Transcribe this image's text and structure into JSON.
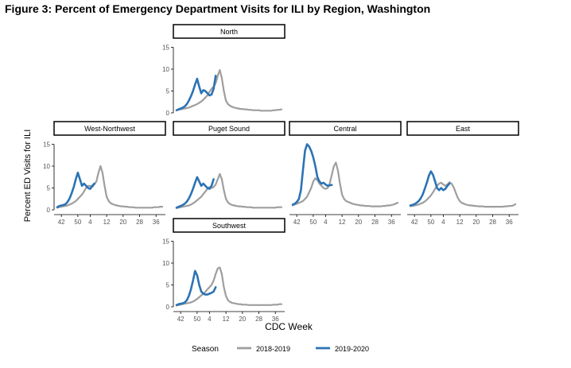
{
  "figure_title": "Figure 3: Percent of Emergency Department Visits for ILI by Region, Washington",
  "colors": {
    "season_2018_2019": "#9e9e9e",
    "season_2019_2020": "#2b73b5",
    "strip_fill": "#ffffff",
    "strip_border": "#000000"
  },
  "chart_data": {
    "type": "line",
    "title": "Figure 3: Percent of Emergency Department Visits for ILI by Region, Washington",
    "xlabel": "CDC Week",
    "ylabel": "Percent ED Visits for ILI",
    "ylim": [
      0,
      15
    ],
    "y_ticks": [
      0,
      5,
      10,
      15
    ],
    "x_ticks": [
      "42",
      "50",
      "4",
      "12",
      "20",
      "28",
      "36"
    ],
    "grid": false,
    "legend": {
      "title": "Season",
      "placement": "bottom",
      "entries": [
        "2018-2019",
        "2019-2020"
      ]
    },
    "x_weeks": [
      40,
      41,
      42,
      43,
      44,
      45,
      46,
      47,
      48,
      49,
      50,
      51,
      52,
      1,
      2,
      3,
      4,
      5,
      6,
      7,
      8,
      9,
      10,
      11,
      12,
      13,
      14,
      15,
      16,
      17,
      18,
      19,
      20,
      21,
      22,
      23,
      24,
      25,
      26,
      27,
      28,
      29,
      30,
      31,
      32,
      33,
      34,
      35,
      36,
      37,
      38,
      39
    ],
    "panels": [
      {
        "name": "North",
        "series": [
          {
            "name": "2018-2019",
            "values": [
              0.6,
              0.7,
              0.8,
              0.9,
              1.0,
              1.1,
              1.2,
              1.4,
              1.6,
              1.8,
              2.0,
              2.3,
              2.6,
              3.0,
              3.5,
              4.0,
              4.8,
              5.5,
              6.0,
              6.8,
              8.5,
              9.8,
              8.0,
              5.0,
              2.8,
              2.0,
              1.6,
              1.4,
              1.2,
              1.1,
              1.0,
              0.9,
              0.9,
              0.8,
              0.8,
              0.7,
              0.7,
              0.6,
              0.6,
              0.6,
              0.6,
              0.5,
              0.5,
              0.5,
              0.5,
              0.5,
              0.5,
              0.6,
              0.6,
              0.7,
              0.7,
              0.8
            ]
          },
          {
            "name": "2019-2020",
            "values": [
              0.6,
              0.8,
              1.0,
              1.2,
              1.5,
              2.0,
              2.8,
              3.8,
              5.0,
              6.5,
              7.8,
              6.0,
              4.5,
              5.2,
              5.0,
              4.5,
              4.0,
              4.2,
              5.5,
              8.5
            ]
          }
        ]
      },
      {
        "name": "West-Northwest",
        "series": [
          {
            "name": "2018-2019",
            "values": [
              0.5,
              0.6,
              0.7,
              0.8,
              0.9,
              1.0,
              1.2,
              1.4,
              1.7,
              2.0,
              2.5,
              3.0,
              3.5,
              4.2,
              5.0,
              5.5,
              5.5,
              5.2,
              5.8,
              6.5,
              8.5,
              10.0,
              8.5,
              5.5,
              3.0,
              2.0,
              1.5,
              1.3,
              1.1,
              1.0,
              0.9,
              0.8,
              0.8,
              0.7,
              0.7,
              0.6,
              0.6,
              0.6,
              0.5,
              0.5,
              0.5,
              0.5,
              0.5,
              0.5,
              0.5,
              0.5,
              0.5,
              0.6,
              0.6,
              0.6,
              0.7,
              0.7
            ]
          },
          {
            "name": "2019-2020",
            "values": [
              0.6,
              0.9,
              1.0,
              1.1,
              1.3,
              1.8,
              2.6,
              3.8,
              5.2,
              7.0,
              8.5,
              7.0,
              5.5,
              6.0,
              5.5,
              5.0,
              4.8,
              5.5,
              6.0
            ]
          }
        ]
      },
      {
        "name": "Puget Sound",
        "series": [
          {
            "name": "2018-2019",
            "values": [
              0.4,
              0.5,
              0.6,
              0.7,
              0.8,
              0.9,
              1.0,
              1.2,
              1.5,
              1.8,
              2.2,
              2.6,
              3.0,
              3.6,
              4.2,
              4.8,
              5.2,
              5.0,
              5.2,
              5.8,
              7.0,
              8.2,
              7.0,
              4.5,
              2.5,
              1.7,
              1.3,
              1.1,
              1.0,
              0.9,
              0.8,
              0.8,
              0.7,
              0.7,
              0.6,
              0.6,
              0.6,
              0.5,
              0.5,
              0.5,
              0.5,
              0.5,
              0.5,
              0.5,
              0.5,
              0.5,
              0.5,
              0.5,
              0.5,
              0.6,
              0.6,
              0.6
            ]
          },
          {
            "name": "2019-2020",
            "values": [
              0.5,
              0.7,
              0.9,
              1.1,
              1.4,
              1.9,
              2.6,
              3.6,
              4.8,
              6.2,
              7.5,
              6.5,
              5.5,
              6.0,
              5.5,
              5.0,
              4.8,
              5.5,
              7.0
            ]
          }
        ]
      },
      {
        "name": "Central",
        "series": [
          {
            "name": "2018-2019",
            "values": [
              1.0,
              1.2,
              1.4,
              1.6,
              1.8,
              2.0,
              2.5,
              3.0,
              4.0,
              5.0,
              6.5,
              7.2,
              6.8,
              6.0,
              5.5,
              5.0,
              4.8,
              5.0,
              6.0,
              8.0,
              10.0,
              10.8,
              9.0,
              6.0,
              3.5,
              2.5,
              2.0,
              1.8,
              1.6,
              1.4,
              1.3,
              1.2,
              1.1,
              1.0,
              1.0,
              0.9,
              0.9,
              0.9,
              0.8,
              0.8,
              0.8,
              0.8,
              0.8,
              0.8,
              0.9,
              0.9,
              1.0,
              1.0,
              1.1,
              1.2,
              1.4,
              1.6
            ]
          },
          {
            "name": "2019-2020",
            "values": [
              1.2,
              1.4,
              1.8,
              2.5,
              4.5,
              9.0,
              13.5,
              15.0,
              14.5,
              13.5,
              12.0,
              10.0,
              7.5,
              6.5,
              6.0,
              6.2,
              5.8,
              5.5,
              5.6,
              5.7
            ]
          }
        ]
      },
      {
        "name": "East",
        "series": [
          {
            "name": "2018-2019",
            "values": [
              0.8,
              0.9,
              1.0,
              1.1,
              1.2,
              1.4,
              1.6,
              1.9,
              2.3,
              2.8,
              3.3,
              4.0,
              4.8,
              5.5,
              6.0,
              6.2,
              5.8,
              5.5,
              5.8,
              6.3,
              6.0,
              5.2,
              4.0,
              2.8,
              2.0,
              1.6,
              1.4,
              1.2,
              1.1,
              1.0,
              1.0,
              0.9,
              0.9,
              0.8,
              0.8,
              0.8,
              0.7,
              0.7,
              0.7,
              0.7,
              0.7,
              0.7,
              0.7,
              0.7,
              0.7,
              0.7,
              0.8,
              0.8,
              0.9,
              0.9,
              1.0,
              1.3
            ]
          },
          {
            "name": "2019-2020",
            "values": [
              1.0,
              1.1,
              1.3,
              1.6,
              2.0,
              2.6,
              3.5,
              4.8,
              6.2,
              7.8,
              8.8,
              8.0,
              6.5,
              5.0,
              4.5,
              5.0,
              4.5,
              4.8,
              5.5,
              6.0
            ]
          }
        ]
      },
      {
        "name": "Southwest",
        "series": [
          {
            "name": "2018-2019",
            "values": [
              0.3,
              0.4,
              0.5,
              0.6,
              0.7,
              0.8,
              0.9,
              1.0,
              1.2,
              1.5,
              1.8,
              2.2,
              2.6,
              3.0,
              3.4,
              4.0,
              4.5,
              5.0,
              6.0,
              7.5,
              8.8,
              9.0,
              7.5,
              4.5,
              2.5,
              1.5,
              1.1,
              0.9,
              0.8,
              0.7,
              0.6,
              0.6,
              0.5,
              0.5,
              0.5,
              0.4,
              0.4,
              0.4,
              0.4,
              0.4,
              0.4,
              0.4,
              0.4,
              0.4,
              0.4,
              0.4,
              0.4,
              0.5,
              0.5,
              0.5,
              0.6,
              0.6
            ]
          },
          {
            "name": "2019-2020",
            "values": [
              0.4,
              0.6,
              0.7,
              0.8,
              1.0,
              1.5,
              2.5,
              4.0,
              6.0,
              8.2,
              7.2,
              5.0,
              3.5,
              3.0,
              2.8,
              2.8,
              3.0,
              3.2,
              3.5,
              4.5
            ]
          }
        ]
      }
    ]
  }
}
